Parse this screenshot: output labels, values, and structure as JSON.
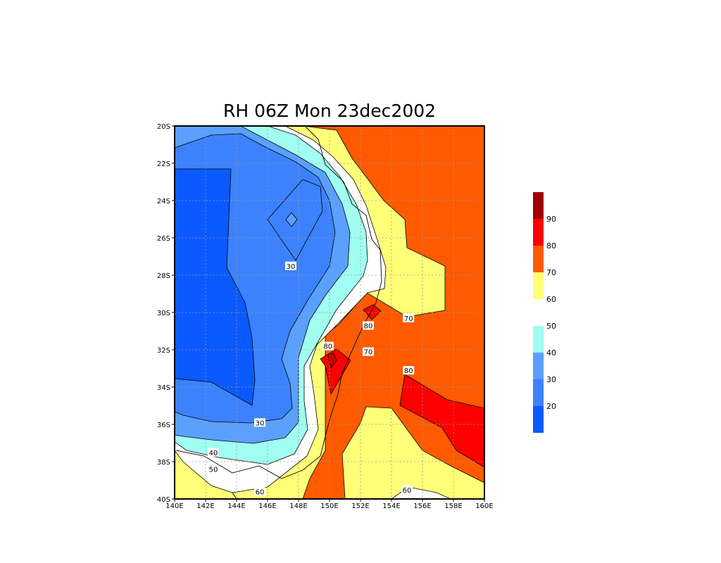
{
  "chart_data": {
    "type": "heatmap",
    "title": "RH 06Z Mon 23dec2002",
    "variable": "RH",
    "x_ticks": [
      "140E",
      "142E",
      "144E",
      "146E",
      "148E",
      "150E",
      "152E",
      "154E",
      "156E",
      "158E",
      "160E"
    ],
    "y_ticks": [
      "20S",
      "22S",
      "24S",
      "26S",
      "28S",
      "30S",
      "32S",
      "34S",
      "36S",
      "38S",
      "40S"
    ],
    "xlim": [
      140,
      160
    ],
    "ylim": [
      -40,
      -20
    ],
    "grid": true,
    "legend_position": "right",
    "contour_labels": [
      {
        "text": "30",
        "lon": 147.5,
        "lat": -27.5
      },
      {
        "text": "30",
        "lon": 145.5,
        "lat": -35.9
      },
      {
        "text": "40",
        "lon": 142.5,
        "lat": -37.5
      },
      {
        "text": "50",
        "lon": 142.5,
        "lat": -38.4
      },
      {
        "text": "60",
        "lon": 145.5,
        "lat": -39.6
      },
      {
        "text": "60",
        "lon": 155.0,
        "lat": -39.5
      },
      {
        "text": "70",
        "lon": 155.1,
        "lat": -30.3
      },
      {
        "text": "70",
        "lon": 152.5,
        "lat": -32.1
      },
      {
        "text": "80",
        "lon": 152.5,
        "lat": -30.7
      },
      {
        "text": "80",
        "lon": 149.9,
        "lat": -31.8
      },
      {
        "text": "80",
        "lon": 155.1,
        "lat": -33.1
      }
    ],
    "colorbar": [
      {
        "label": "",
        "color": "#a00000",
        "value": 100
      },
      {
        "label": "90",
        "color": "#ff0000",
        "value": 90
      },
      {
        "label": "80",
        "color": "#ff5a00",
        "value": 80
      },
      {
        "label": "70",
        "color": "#ffff78",
        "value": 70
      },
      {
        "label": "60",
        "color": "#ffffff",
        "value": 60
      },
      {
        "label": "50",
        "color": "#a0fff0",
        "value": 50
      },
      {
        "label": "40",
        "color": "#5aa0ff",
        "value": 40
      },
      {
        "label": "30",
        "color": "#3c82ff",
        "value": 30
      },
      {
        "label": "20",
        "color": "#0a5aff",
        "value": 20
      }
    ]
  }
}
